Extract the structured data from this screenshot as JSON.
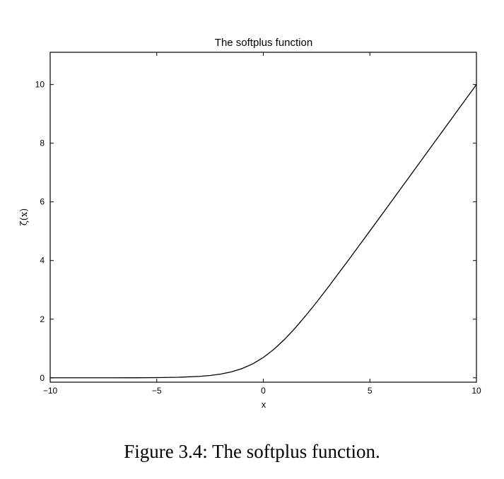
{
  "caption": "Figure 3.4: The softplus function.",
  "chart_data": {
    "type": "line",
    "title": "The softplus function",
    "xlabel": "x",
    "ylabel": "ζ(x)",
    "xlim": [
      -10,
      10
    ],
    "ylim": [
      -0.15,
      11.1
    ],
    "xticks": [
      -10,
      -5,
      0,
      5,
      10
    ],
    "yticks": [
      0,
      2,
      4,
      6,
      8,
      10
    ],
    "xtick_labels": [
      "−10",
      "−5",
      "0",
      "5",
      "10"
    ],
    "ytick_labels": [
      "0",
      "2",
      "4",
      "6",
      "8",
      "10"
    ],
    "grid": false,
    "series": [
      {
        "color": "#000000",
        "x": [
          -10,
          -9,
          -8,
          -7,
          -6,
          -5,
          -4,
          -3,
          -2.5,
          -2,
          -1.5,
          -1,
          -0.5,
          0,
          0.5,
          1,
          1.5,
          2,
          2.5,
          3,
          4,
          5,
          6,
          7,
          8,
          9,
          10
        ],
        "y": [
          5e-05,
          0.00012,
          0.00034,
          0.00091,
          0.0025,
          0.0067,
          0.018,
          0.049,
          0.079,
          0.127,
          0.201,
          0.313,
          0.474,
          0.693,
          0.974,
          1.313,
          1.701,
          2.127,
          2.579,
          3.049,
          4.018,
          5.007,
          6.002,
          7.001,
          8.0,
          9.0,
          10.0
        ]
      }
    ]
  }
}
